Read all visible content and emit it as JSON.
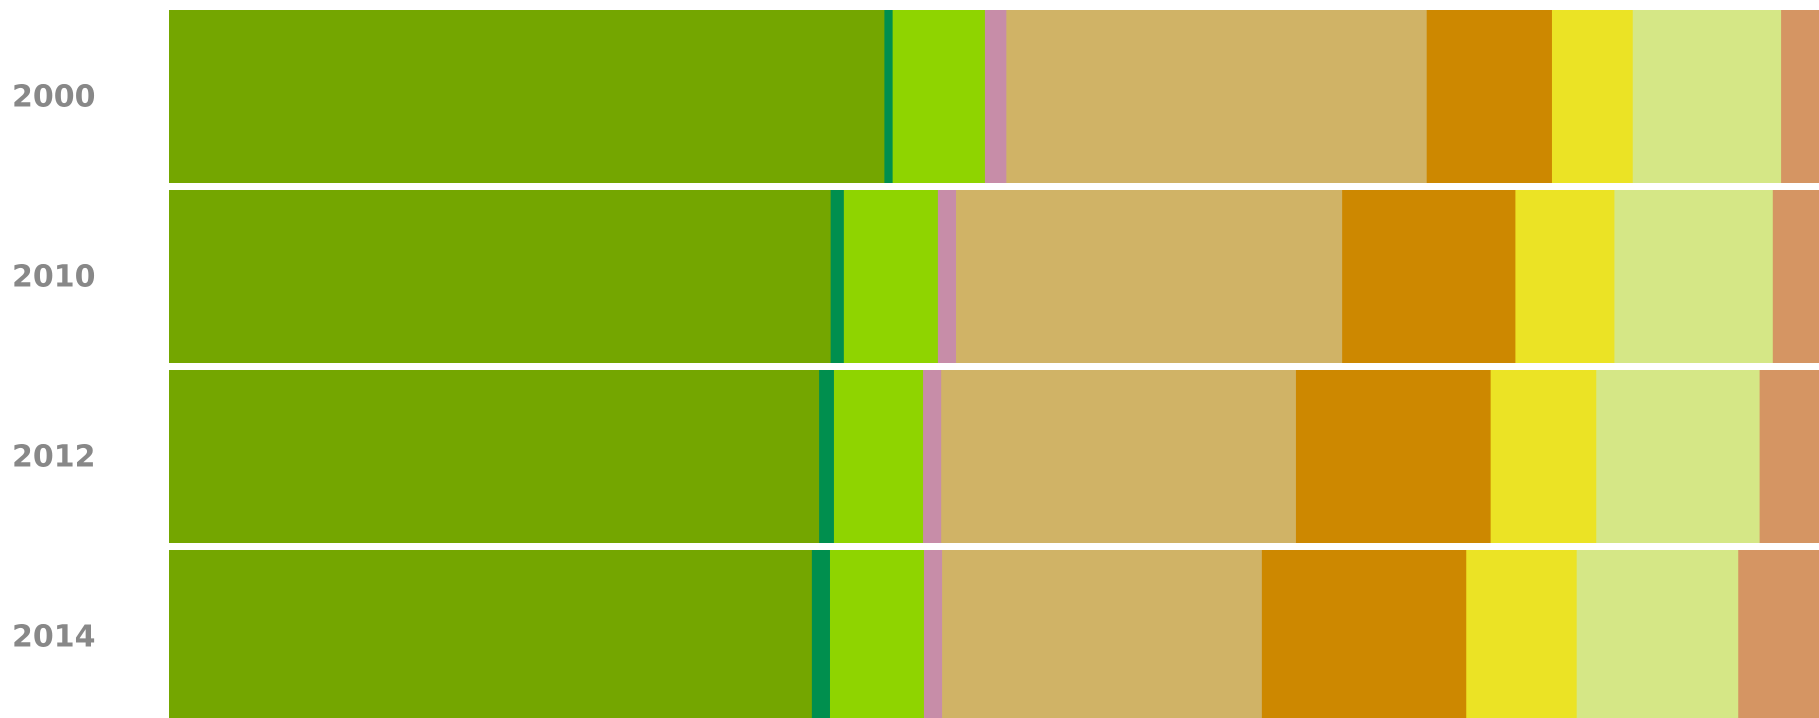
{
  "chart_data": {
    "type": "bar",
    "orientation": "horizontal",
    "stacked": "100%",
    "categories": [
      "2000",
      "2010",
      "2012",
      "2014"
    ],
    "series": [
      {
        "color": "#74a600",
        "values": [
          43.4,
          40.1,
          39.4,
          39.0
        ]
      },
      {
        "color": "#008f4e",
        "values": [
          0.5,
          0.8,
          0.9,
          1.1
        ]
      },
      {
        "color": "#8fd400",
        "values": [
          5.6,
          5.7,
          5.4,
          5.7
        ]
      },
      {
        "color": "#c78da8",
        "values": [
          1.3,
          1.1,
          1.1,
          1.1
        ]
      },
      {
        "color": "#d0b366",
        "values": [
          25.5,
          23.4,
          21.5,
          19.4
        ]
      },
      {
        "color": "#cd8800",
        "values": [
          7.6,
          10.5,
          11.8,
          12.4
        ]
      },
      {
        "color": "#ebe325",
        "values": [
          4.9,
          6.0,
          6.4,
          6.7
        ]
      },
      {
        "color": "#d5e786",
        "values": [
          9.0,
          9.6,
          9.9,
          9.8
        ]
      },
      {
        "color": "#d59563",
        "values": [
          2.3,
          2.8,
          3.6,
          4.9
        ]
      }
    ],
    "grid": false,
    "legend": "none"
  }
}
